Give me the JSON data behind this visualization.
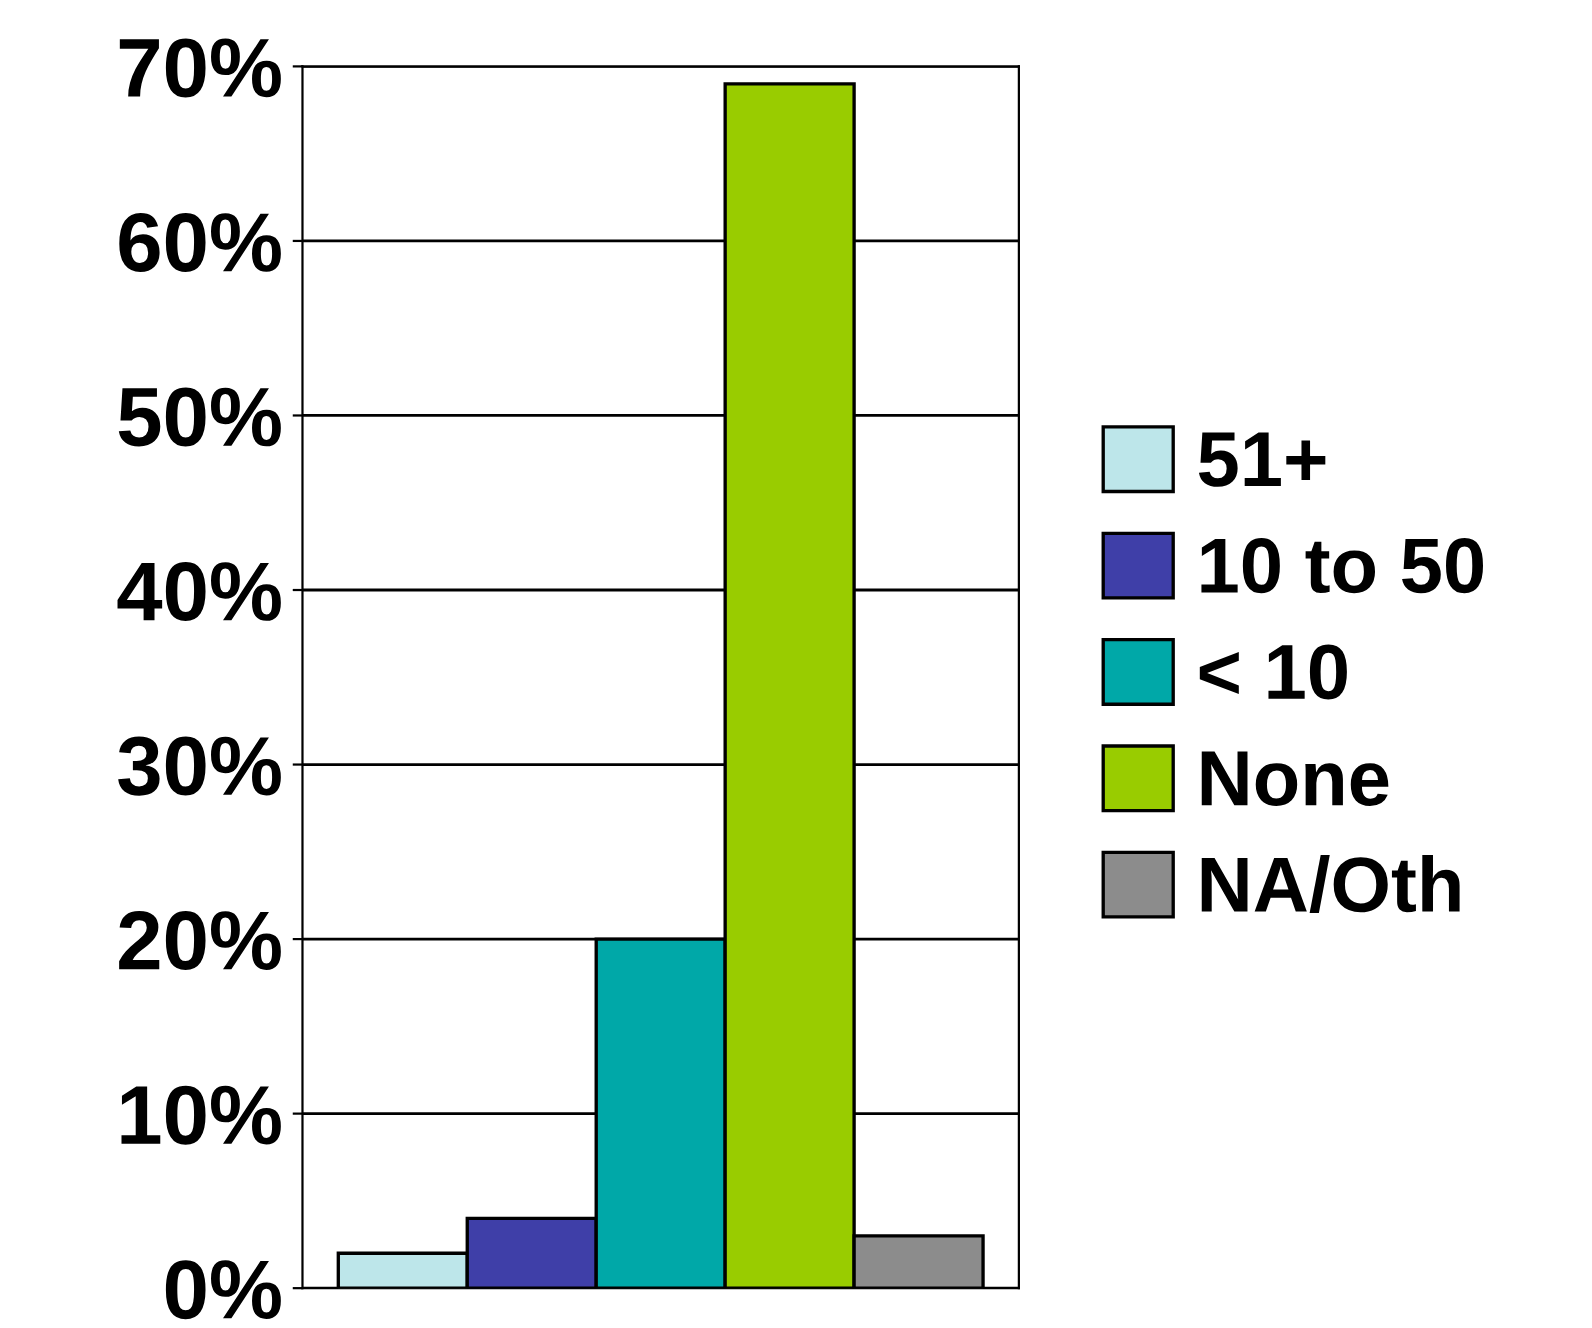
{
  "chart_data": {
    "type": "bar",
    "categories": [
      null
    ],
    "series": [
      {
        "name": "51+",
        "color": "#bde6ea",
        "values": [
          2
        ]
      },
      {
        "name": "10 to 50",
        "color": "#3f3fa8",
        "values": [
          4
        ]
      },
      {
        "name": "< 10",
        "color": "#00a8a8",
        "values": [
          20
        ]
      },
      {
        "name": "None",
        "color": "#99cc00",
        "values": [
          69
        ]
      },
      {
        "name": "NA/Oth",
        "color": "#8c8c8c",
        "values": [
          3
        ]
      }
    ],
    "ylim": [
      0,
      70
    ],
    "yticks": [
      {
        "value": 0,
        "label": "0%"
      },
      {
        "value": 10,
        "label": "10%"
      },
      {
        "value": 20,
        "label": "20%"
      },
      {
        "value": 30,
        "label": "30%"
      },
      {
        "value": 40,
        "label": "40%"
      },
      {
        "value": 50,
        "label": "50%"
      },
      {
        "value": 60,
        "label": "60%"
      },
      {
        "value": 70,
        "label": "70%"
      }
    ],
    "grid": "y",
    "legend": "right"
  }
}
